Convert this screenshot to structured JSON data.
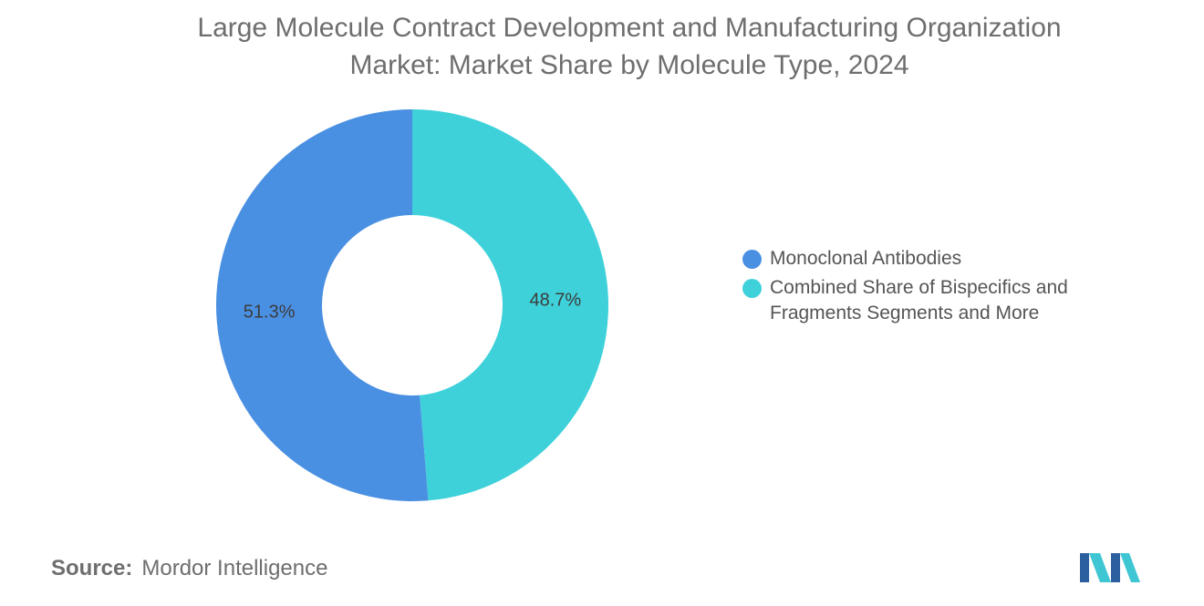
{
  "title_lines": [
    "Large Molecule Contract Development and Manufacturing Organization",
    "Market: Market Share by Molecule Type, 2024"
  ],
  "chart_data": {
    "type": "pie",
    "donut": true,
    "title": "Large Molecule Contract Development and Manufacturing Organization Market: Market Share by Molecule Type, 2024",
    "categories": [
      "Monoclonal Antibodies",
      "Combined Share of Bispecifics and Fragments Segments and More"
    ],
    "values": [
      51.3,
      48.7
    ],
    "value_labels": [
      "51.3%",
      "48.7%"
    ],
    "colors": [
      "#4a90e2",
      "#3fd1da"
    ],
    "legend_position": "right"
  },
  "legend": [
    {
      "label": "Monoclonal Antibodies",
      "color": "#4a90e2"
    },
    {
      "label": "Combined Share of Bispecifics and Fragments Segments and More",
      "color": "#3fd1da"
    }
  ],
  "source": {
    "key": "Source:",
    "value": "Mordor Intelligence"
  },
  "logo": {
    "name": "mordor-intelligence-logo",
    "colors": [
      "#2c5f9e",
      "#3fc6d3"
    ]
  }
}
